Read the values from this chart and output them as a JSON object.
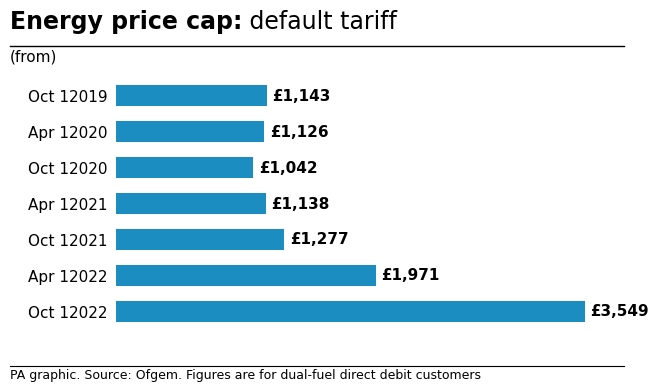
{
  "title_bold": "Energy price cap:",
  "title_regular": " default tariff",
  "subtitle": "(from)",
  "footer": "PA graphic. Source: Ofgem. Figures are for dual-fuel direct debit customers",
  "categories": [
    "Oct 12019",
    "Apr 12020",
    "Oct 12020",
    "Apr 12021",
    "Oct 12021",
    "Apr 12022",
    "Oct 12022"
  ],
  "values": [
    1143,
    1126,
    1042,
    1138,
    1277,
    1971,
    3549
  ],
  "labels": [
    "£1,143",
    "£1,126",
    "£1,042",
    "£1,138",
    "£1,277",
    "£1,971",
    "£3,549"
  ],
  "bar_color": "#1b8dc0",
  "background_color": "#ffffff",
  "xlim": [
    0,
    3800
  ],
  "bar_height": 0.58,
  "title_fontsize": 17,
  "label_fontsize": 11,
  "category_fontsize": 11,
  "footer_fontsize": 9
}
